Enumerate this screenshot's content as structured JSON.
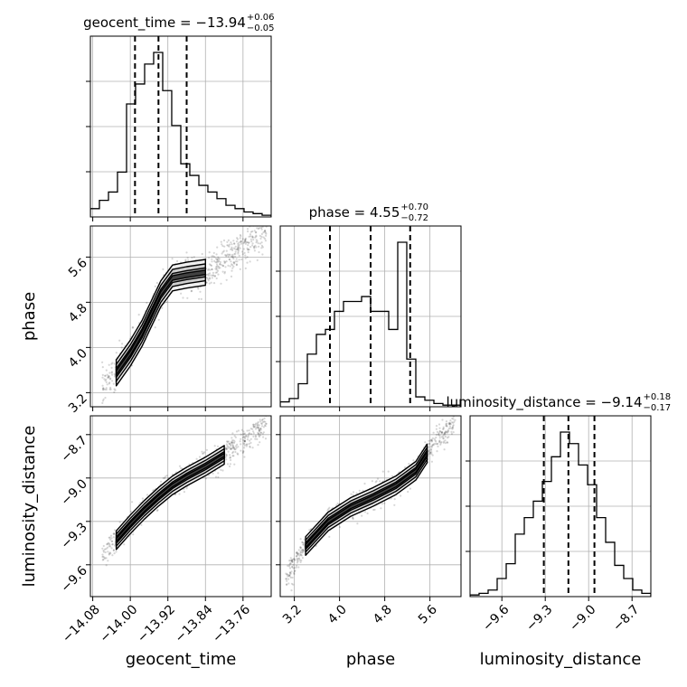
{
  "chart_data": {
    "type": "corner",
    "parameters": [
      "geocent_time",
      "phase",
      "luminosity_distance"
    ],
    "ranges": {
      "geocent_time": [
        -14.085,
        -13.7
      ],
      "phase": [
        2.95,
        6.15
      ],
      "luminosity_distance": [
        -9.82,
        -8.57
      ]
    },
    "ticks": {
      "geocent_time": [
        -14.08,
        -14.0,
        -13.92,
        -13.84,
        -13.76
      ],
      "phase": [
        3.2,
        4.0,
        4.8,
        5.6
      ],
      "luminosity_distance": [
        -9.6,
        -9.3,
        -9.0,
        -8.7
      ]
    },
    "tick_labels": {
      "geocent_time": [
        "−14.08",
        "−14.00",
        "−13.92",
        "−13.84",
        "−13.76"
      ],
      "phase": [
        "3.2",
        "4.0",
        "4.8",
        "5.6"
      ],
      "luminosity_distance": [
        "−9.6",
        "−9.3",
        "−9.0",
        "−8.7"
      ]
    },
    "titles": [
      {
        "param": "geocent_time",
        "text": "geocent_time = −13.94",
        "plus": "+0.06",
        "minus": "−0.05"
      },
      {
        "param": "phase",
        "text": "phase = 4.55",
        "plus": "+0.70",
        "minus": "−0.72"
      },
      {
        "param": "luminosity_distance",
        "text": "luminosity_distance = −9.14",
        "plus": "+0.18",
        "minus": "−0.17"
      }
    ],
    "quantiles": {
      "geocent_time": [
        -13.99,
        -13.94,
        -13.88
      ],
      "phase": [
        3.83,
        4.55,
        5.25
      ],
      "luminosity_distance": [
        -9.31,
        -9.14,
        -8.96
      ]
    },
    "histograms": {
      "geocent_time": {
        "edges": [
          -14.085,
          -14.0658,
          -14.0465,
          -14.0273,
          -14.008,
          -13.9888,
          -13.9695,
          -13.9503,
          -13.931,
          -13.9118,
          -13.8925,
          -13.8733,
          -13.854,
          -13.8348,
          -13.8155,
          -13.7963,
          -13.777,
          -13.7578,
          -13.7385,
          -13.7193,
          -13.7
        ],
        "counts": [
          5,
          10,
          15,
          27,
          68,
          80,
          92,
          99,
          76,
          55,
          32,
          25,
          19,
          15,
          11,
          7,
          5,
          3,
          2,
          1
        ]
      },
      "phase": {
        "edges": [
          2.95,
          3.11,
          3.27,
          3.43,
          3.59,
          3.75,
          3.91,
          4.07,
          4.23,
          4.39,
          4.55,
          4.71,
          4.87,
          5.03,
          5.19,
          5.35,
          5.51,
          5.67,
          5.83,
          5.99,
          6.15
        ],
        "counts": [
          3,
          5,
          14,
          32,
          44,
          47,
          58,
          64,
          64,
          67,
          58,
          58,
          47,
          100,
          29,
          6,
          4,
          2,
          1,
          1
        ]
      },
      "luminosity_distance": {
        "edges": [
          -9.82,
          -9.7575,
          -9.695,
          -9.6325,
          -9.57,
          -9.5075,
          -9.445,
          -9.3825,
          -9.32,
          -9.2575,
          -9.195,
          -9.1325,
          -9.07,
          -9.0075,
          -8.945,
          -8.8825,
          -8.82,
          -8.7575,
          -8.695,
          -8.6325,
          -8.57
        ],
        "counts": [
          1,
          2,
          4,
          11,
          20,
          38,
          48,
          58,
          70,
          85,
          100,
          93,
          80,
          68,
          48,
          33,
          19,
          11,
          4,
          2
        ]
      }
    },
    "joint_ridges": {
      "phase_vs_geocent_time": [
        [
          -14.06,
          3.3
        ],
        [
          -14.03,
          3.55
        ],
        [
          -14.0,
          3.9
        ],
        [
          -13.975,
          4.25
        ],
        [
          -13.955,
          4.6
        ],
        [
          -13.935,
          4.95
        ],
        [
          -13.91,
          5.23
        ],
        [
          -13.88,
          5.28
        ],
        [
          -13.84,
          5.33
        ],
        [
          -13.8,
          5.55
        ],
        [
          -13.75,
          5.85
        ],
        [
          -13.71,
          6.05
        ]
      ],
      "luminosity_distance_vs_geocent_time": [
        [
          -14.06,
          -9.53
        ],
        [
          -14.03,
          -9.43
        ],
        [
          -14.0,
          -9.32
        ],
        [
          -13.97,
          -9.22
        ],
        [
          -13.94,
          -9.13
        ],
        [
          -13.91,
          -9.05
        ],
        [
          -13.88,
          -8.99
        ],
        [
          -13.84,
          -8.92
        ],
        [
          -13.8,
          -8.84
        ],
        [
          -13.75,
          -8.72
        ],
        [
          -13.71,
          -8.63
        ]
      ],
      "luminosity_distance_vs_phase": [
        [
          3.05,
          -9.69
        ],
        [
          3.4,
          -9.47
        ],
        [
          3.8,
          -9.3
        ],
        [
          4.2,
          -9.2
        ],
        [
          4.6,
          -9.13
        ],
        [
          5.0,
          -9.05
        ],
        [
          5.35,
          -8.95
        ],
        [
          5.55,
          -8.83
        ],
        [
          5.8,
          -8.72
        ],
        [
          6.05,
          -8.62
        ]
      ]
    },
    "grid": true,
    "color": "#000000"
  }
}
